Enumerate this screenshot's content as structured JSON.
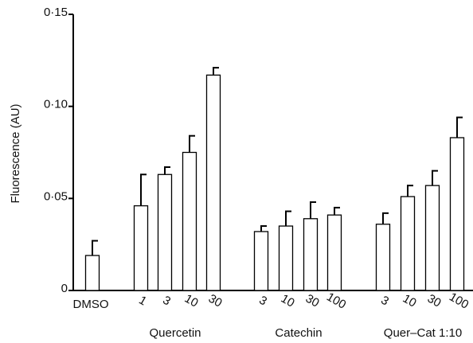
{
  "chart_data": {
    "type": "bar",
    "title": "",
    "xlabel": "",
    "ylabel": "Fluorescence (AU)",
    "ylim": [
      0,
      0.15
    ],
    "yticks": [
      "0",
      "0·05",
      "0·10",
      "0·15"
    ],
    "ytick_values": [
      0,
      0.05,
      0.1,
      0.15
    ],
    "grid": false,
    "legend": "none",
    "bar_fill": "#ffffff",
    "bar_stroke": "#000000",
    "groups": [
      {
        "label": "",
        "bars": [
          {
            "category": "DMSO",
            "value": 0.019,
            "error": 0.008
          }
        ]
      },
      {
        "label": "Quercetin",
        "bars": [
          {
            "category": "1",
            "value": 0.046,
            "error": 0.017
          },
          {
            "category": "3",
            "value": 0.063,
            "error": 0.004
          },
          {
            "category": "10",
            "value": 0.075,
            "error": 0.009
          },
          {
            "category": "30",
            "value": 0.117,
            "error": 0.004
          }
        ]
      },
      {
        "label": "Catechin",
        "bars": [
          {
            "category": "3",
            "value": 0.032,
            "error": 0.003
          },
          {
            "category": "10",
            "value": 0.035,
            "error": 0.008
          },
          {
            "category": "30",
            "value": 0.039,
            "error": 0.009
          },
          {
            "category": "100",
            "value": 0.041,
            "error": 0.004
          }
        ]
      },
      {
        "label": "Quer–Cat 1:10",
        "bars": [
          {
            "category": "3",
            "value": 0.036,
            "error": 0.006
          },
          {
            "category": "10",
            "value": 0.051,
            "error": 0.006
          },
          {
            "category": "30",
            "value": 0.057,
            "error": 0.008
          },
          {
            "category": "100",
            "value": 0.083,
            "error": 0.011
          }
        ]
      }
    ]
  }
}
